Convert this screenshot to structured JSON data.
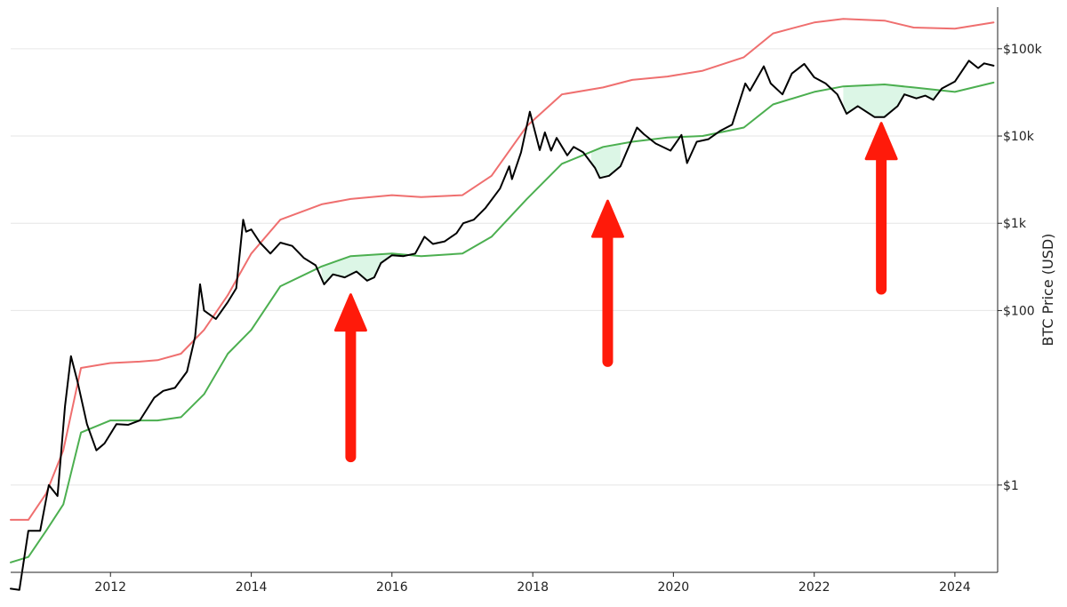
{
  "chart_data": {
    "type": "line",
    "title": "",
    "xlabel": "",
    "ylabel": "BTC Price (USD)",
    "y_scale": "log",
    "ylim": [
      0.1,
      300000
    ],
    "xlim": [
      "2010-08-01",
      "2024-08-10"
    ],
    "x_ticks": [
      "2012",
      "2014",
      "2016",
      "2018",
      "2020",
      "2022",
      "2024"
    ],
    "y_ticks": [
      {
        "value": 1,
        "label": "$1"
      },
      {
        "value": 100,
        "label": "$100"
      },
      {
        "value": 1000,
        "label": "$1k"
      },
      {
        "value": 10000,
        "label": "$10k"
      },
      {
        "value": 100000,
        "label": "$100k"
      }
    ],
    "grid": "horizontal",
    "colors": {
      "price": "#000000",
      "upper_band": "#ef6f6f",
      "lower_band": "#4caf50",
      "fill_below_band": "#d8f5e3",
      "arrow": "#ff1a0a"
    },
    "series": [
      {
        "role": "upper-band",
        "x": [
          "2010-08-01",
          "2010-11-01",
          "2011-02-01",
          "2011-05-01",
          "2011-08-01",
          "2012-01-01",
          "2012-06-01",
          "2012-09-01",
          "2013-01-01",
          "2013-05-01",
          "2013-09-01",
          "2014-01-01",
          "2014-06-01",
          "2015-01-01",
          "2015-06-01",
          "2016-01-01",
          "2016-06-01",
          "2017-01-01",
          "2017-06-01",
          "2017-12-01",
          "2018-06-01",
          "2019-01-01",
          "2019-06-01",
          "2019-12-01",
          "2020-06-01",
          "2021-01-01",
          "2021-06-01",
          "2022-01-01",
          "2022-06-01",
          "2023-01-01",
          "2023-06-01",
          "2024-01-01",
          "2024-07-20"
        ],
        "values": [
          0.4,
          0.4,
          0.8,
          2.5,
          22,
          25,
          26,
          27,
          32,
          60,
          150,
          450,
          1100,
          1650,
          1900,
          2100,
          2000,
          2100,
          3500,
          13000,
          30000,
          36000,
          44000,
          48000,
          56000,
          80000,
          150000,
          200000,
          220000,
          210000,
          175000,
          170000,
          200000
        ]
      },
      {
        "role": "lower-band",
        "x": [
          "2010-08-01",
          "2010-11-01",
          "2011-02-01",
          "2011-05-01",
          "2011-08-01",
          "2012-01-01",
          "2012-06-01",
          "2012-09-01",
          "2013-01-01",
          "2013-05-01",
          "2013-09-01",
          "2014-01-01",
          "2014-06-01",
          "2015-01-01",
          "2015-06-01",
          "2016-01-01",
          "2016-06-01",
          "2017-01-01",
          "2017-06-01",
          "2017-12-01",
          "2018-06-01",
          "2019-01-01",
          "2019-06-01",
          "2019-12-01",
          "2020-06-01",
          "2021-01-01",
          "2021-06-01",
          "2022-01-01",
          "2022-06-01",
          "2023-01-01",
          "2023-06-01",
          "2024-01-01",
          "2024-07-20"
        ],
        "values": [
          0.13,
          0.15,
          0.3,
          0.6,
          4,
          5.5,
          5.5,
          5.5,
          6,
          11,
          32,
          60,
          190,
          320,
          420,
          450,
          420,
          450,
          700,
          1900,
          4800,
          7500,
          8600,
          9600,
          10000,
          12500,
          23000,
          32000,
          37000,
          39000,
          36000,
          32000,
          41000
        ]
      },
      {
        "role": "price",
        "x": [
          "2010-08-01",
          "2010-09-15",
          "2010-11-01",
          "2011-01-01",
          "2011-02-15",
          "2011-04-01",
          "2011-05-10",
          "2011-06-10",
          "2011-07-15",
          "2011-09-01",
          "2011-10-20",
          "2011-12-01",
          "2012-02-01",
          "2012-04-01",
          "2012-06-01",
          "2012-08-15",
          "2012-10-01",
          "2012-12-01",
          "2013-02-01",
          "2013-03-15",
          "2013-04-10",
          "2013-05-01",
          "2013-07-01",
          "2013-09-01",
          "2013-10-15",
          "2013-11-20",
          "2013-12-05",
          "2014-01-01",
          "2014-02-15",
          "2014-04-10",
          "2014-06-01",
          "2014-08-01",
          "2014-10-01",
          "2014-12-01",
          "2015-01-14",
          "2015-03-01",
          "2015-05-01",
          "2015-07-01",
          "2015-08-25",
          "2015-10-01",
          "2015-11-05",
          "2016-01-01",
          "2016-03-01",
          "2016-05-01",
          "2016-06-18",
          "2016-08-01",
          "2016-10-01",
          "2016-12-01",
          "2017-01-05",
          "2017-03-01",
          "2017-05-01",
          "2017-07-15",
          "2017-09-01",
          "2017-09-15",
          "2017-11-01",
          "2017-12-17",
          "2018-02-06",
          "2018-03-05",
          "2018-04-06",
          "2018-05-05",
          "2018-06-29",
          "2018-08-01",
          "2018-09-20",
          "2018-11-20",
          "2018-12-15",
          "2019-02-01",
          "2019-04-01",
          "2019-06-26",
          "2019-08-01",
          "2019-10-01",
          "2019-12-17",
          "2020-02-12",
          "2020-03-12",
          "2020-05-01",
          "2020-07-01",
          "2020-09-01",
          "2020-11-01",
          "2021-01-08",
          "2021-02-01",
          "2021-04-14",
          "2021-05-20",
          "2021-07-20",
          "2021-09-07",
          "2021-11-10",
          "2022-01-01",
          "2022-03-01",
          "2022-05-01",
          "2022-06-18",
          "2022-08-15",
          "2022-11-10",
          "2022-12-31",
          "2023-03-10",
          "2023-04-14",
          "2023-06-15",
          "2023-08-01",
          "2023-09-11",
          "2023-10-25",
          "2024-01-01",
          "2024-03-14",
          "2024-05-01",
          "2024-06-01",
          "2024-07-20"
        ],
        "values": [
          0.065,
          0.063,
          0.3,
          0.3,
          1,
          0.75,
          8,
          30,
          15,
          5,
          2.5,
          3,
          5,
          4.9,
          5.5,
          10,
          12,
          13,
          20,
          50,
          200,
          100,
          80,
          125,
          180,
          1100,
          800,
          850,
          600,
          450,
          600,
          550,
          400,
          330,
          200,
          260,
          240,
          280,
          220,
          240,
          350,
          430,
          420,
          450,
          700,
          580,
          620,
          770,
          1000,
          1100,
          1500,
          2500,
          4500,
          3200,
          6500,
          19000,
          6900,
          11000,
          6800,
          9500,
          6000,
          7500,
          6500,
          4300,
          3300,
          3500,
          4500,
          12500,
          10500,
          8200,
          6800,
          10300,
          4900,
          8600,
          9200,
          11500,
          13500,
          40000,
          33000,
          63000,
          40000,
          30000,
          52000,
          67000,
          47000,
          40000,
          30000,
          18000,
          22000,
          16500,
          16500,
          22000,
          30000,
          27000,
          29000,
          26000,
          35000,
          42000,
          73000,
          60000,
          68000,
          64000
        ]
      }
    ],
    "fill_regions": [
      {
        "from": "2015-01-01",
        "to": "2016-04-15"
      },
      {
        "from": "2018-11-01",
        "to": "2019-04-01"
      },
      {
        "from": "2022-06-01",
        "to": "2023-10-25"
      }
    ],
    "annotations": [
      {
        "type": "arrow",
        "date": "2015-06-01",
        "direction": "up",
        "tip_value": 152,
        "tail_value": 2.1
      },
      {
        "type": "arrow",
        "date": "2019-01-25",
        "direction": "up",
        "tip_value": 1800,
        "tail_value": 26
      },
      {
        "type": "arrow",
        "date": "2022-12-15",
        "direction": "up",
        "tip_value": 14000,
        "tail_value": 175
      }
    ]
  }
}
